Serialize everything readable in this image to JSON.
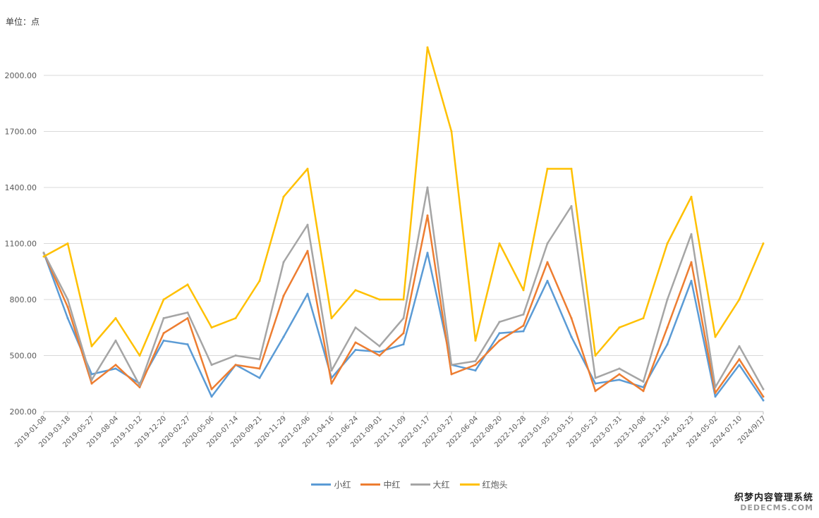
{
  "chart_data": {
    "type": "line",
    "unit_label": "单位：点",
    "ylim": [
      200,
      2300
    ],
    "yticks": [
      "200.00",
      "500.00",
      "800.00",
      "1100.00",
      "1400.00",
      "1700.00",
      "2000.00"
    ],
    "grid": true,
    "legend_position": "bottom",
    "categories": [
      "2019-01-08",
      "2019-03-18",
      "2019-05-27",
      "2019-08-04",
      "2019-10-12",
      "2019-12-20",
      "2020-02-27",
      "2020-05-06",
      "2020-07-14",
      "2020-09-21",
      "2020-11-29",
      "2021-02-06",
      "2021-04-16",
      "2021-06-24",
      "2021-09-01",
      "2021-11-09",
      "2022-01-17",
      "2022-03-27",
      "2022-06-04",
      "2022-08-20",
      "2022-10-28",
      "2023-01-05",
      "2023-03-15",
      "2023-05-23",
      "2023-07-31",
      "2023-10-08",
      "2023-12-16",
      "2024-02-23",
      "2024-05-02",
      "2024-07-10",
      "2024/9/17"
    ],
    "series": [
      {
        "name": "小红",
        "color": "#5B9BD5",
        "values": [
          1050,
          700,
          400,
          430,
          350,
          580,
          560,
          280,
          450,
          380,
          600,
          830,
          380,
          530,
          520,
          560,
          1050,
          450,
          420,
          620,
          630,
          900,
          600,
          350,
          370,
          330,
          560,
          900,
          280,
          450,
          260
        ]
      },
      {
        "name": "中红",
        "color": "#ED7D31",
        "values": [
          1050,
          760,
          350,
          450,
          330,
          620,
          700,
          320,
          450,
          430,
          820,
          1060,
          350,
          570,
          500,
          620,
          1250,
          400,
          450,
          580,
          660,
          1000,
          700,
          310,
          400,
          310,
          650,
          1000,
          300,
          480,
          280
        ]
      },
      {
        "name": "大红",
        "color": "#A5A5A5",
        "values": [
          1050,
          800,
          370,
          580,
          340,
          700,
          730,
          450,
          500,
          480,
          1000,
          1200,
          420,
          650,
          550,
          700,
          1400,
          450,
          470,
          680,
          720,
          1100,
          1300,
          380,
          430,
          360,
          800,
          1150,
          330,
          550,
          320
        ]
      },
      {
        "name": "红炮头",
        "color": "#FFC000",
        "values": [
          1030,
          1100,
          550,
          700,
          500,
          800,
          880,
          650,
          700,
          900,
          1350,
          1500,
          700,
          850,
          800,
          800,
          2150,
          1700,
          580,
          1100,
          850,
          1500,
          1500,
          500,
          650,
          700,
          1100,
          1350,
          600,
          800,
          1100
        ]
      }
    ]
  },
  "watermark": {
    "cn": "织梦内容管理系统",
    "en": "DEDECMS.COM"
  }
}
